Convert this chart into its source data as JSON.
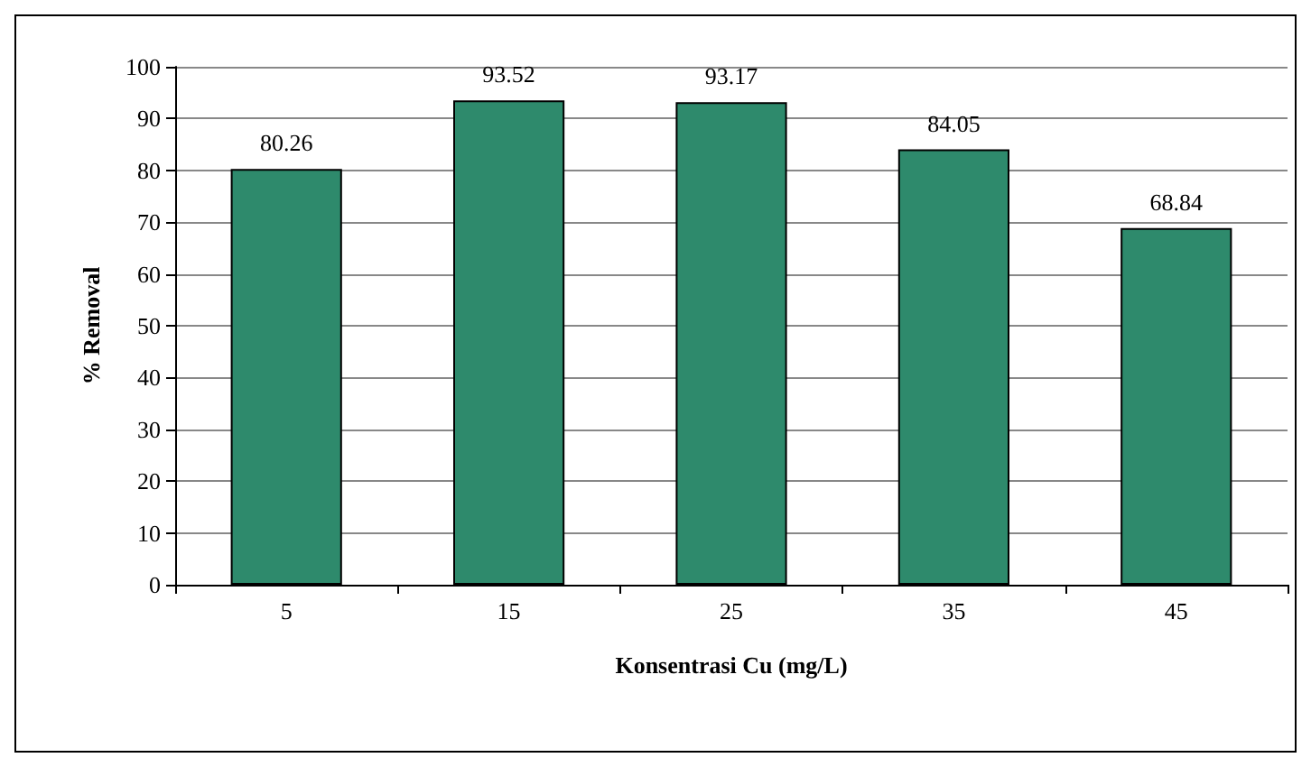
{
  "chart_data": {
    "type": "bar",
    "xlabel": "Konsentrasi Cu (mg/L)",
    "ylabel": "% Removal",
    "categories": [
      "5",
      "15",
      "25",
      "35",
      "45"
    ],
    "values": [
      80.26,
      93.52,
      93.17,
      84.05,
      68.84
    ],
    "color": "#2e8a6c",
    "ylim": [
      0,
      100
    ],
    "yticks": [
      0,
      10,
      20,
      30,
      40,
      50,
      60,
      70,
      80,
      90,
      100
    ],
    "grid": "y",
    "data_labels": true
  }
}
